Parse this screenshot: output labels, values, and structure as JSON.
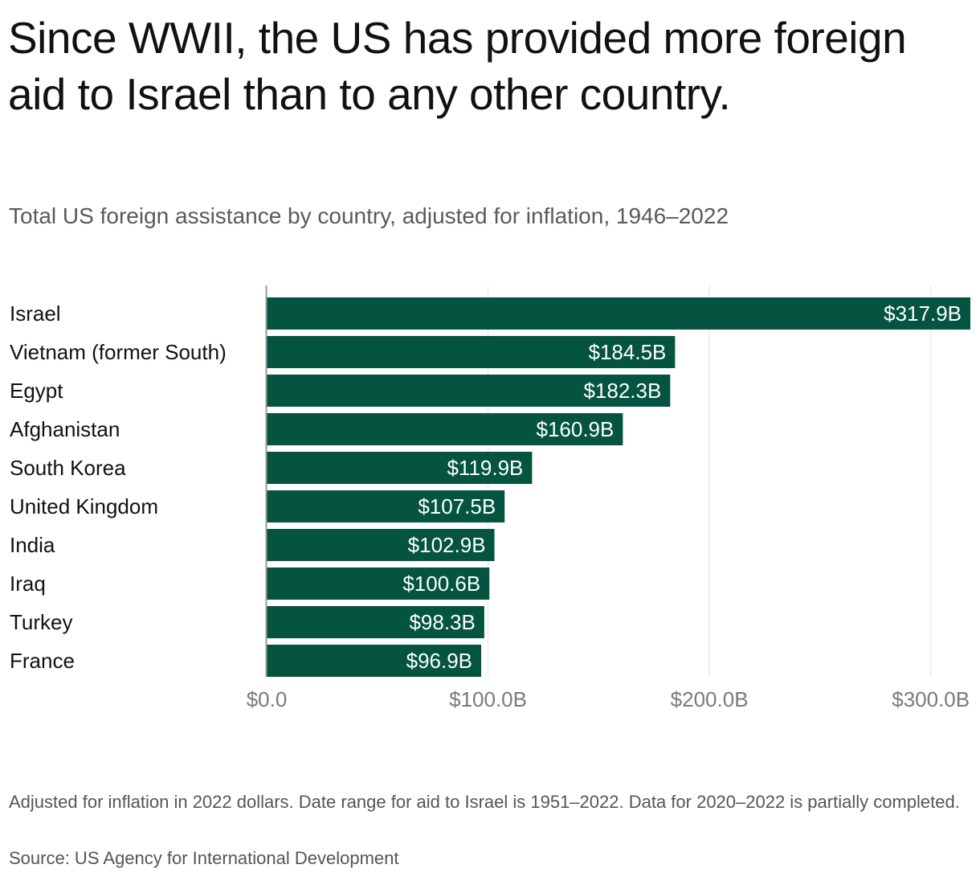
{
  "title": "Since WWII, the US has provided more foreign aid to Israel than to any other country.",
  "subtitle": "Total US foreign assistance by country, adjusted for inflation, 1946–2022",
  "footnote": "Adjusted for inflation in 2022 dollars. Date range for aid to Israel is 1951–2022. Data for 2020–2022 is partially completed.",
  "source": "Source: US Agency for International Development",
  "colors": {
    "bar": "#045440",
    "grid": "#e2e2e2",
    "axis": "#9a9a9a"
  },
  "chart_data": {
    "type": "bar",
    "orientation": "horizontal",
    "categories": [
      "Israel",
      "Vietnam (former South)",
      "Egypt",
      "Afghanistan",
      "South Korea",
      "United Kingdom",
      "India",
      "Iraq",
      "Turkey",
      "France"
    ],
    "values": [
      317.9,
      184.5,
      182.3,
      160.9,
      119.9,
      107.5,
      102.9,
      100.6,
      98.3,
      96.9
    ],
    "value_labels": [
      "$317.9B",
      "$184.5B",
      "$182.3B",
      "$160.9B",
      "$119.9B",
      "$107.5B",
      "$102.9B",
      "$100.6B",
      "$98.3B",
      "$96.9B"
    ],
    "unit": "billion USD",
    "xlim": [
      0,
      317.9
    ],
    "ticks": [
      0,
      100,
      200,
      300
    ],
    "tick_labels": [
      "$0.0",
      "$100.0B",
      "$200.0B",
      "$300.0B"
    ],
    "grid": true,
    "legend": "none"
  }
}
